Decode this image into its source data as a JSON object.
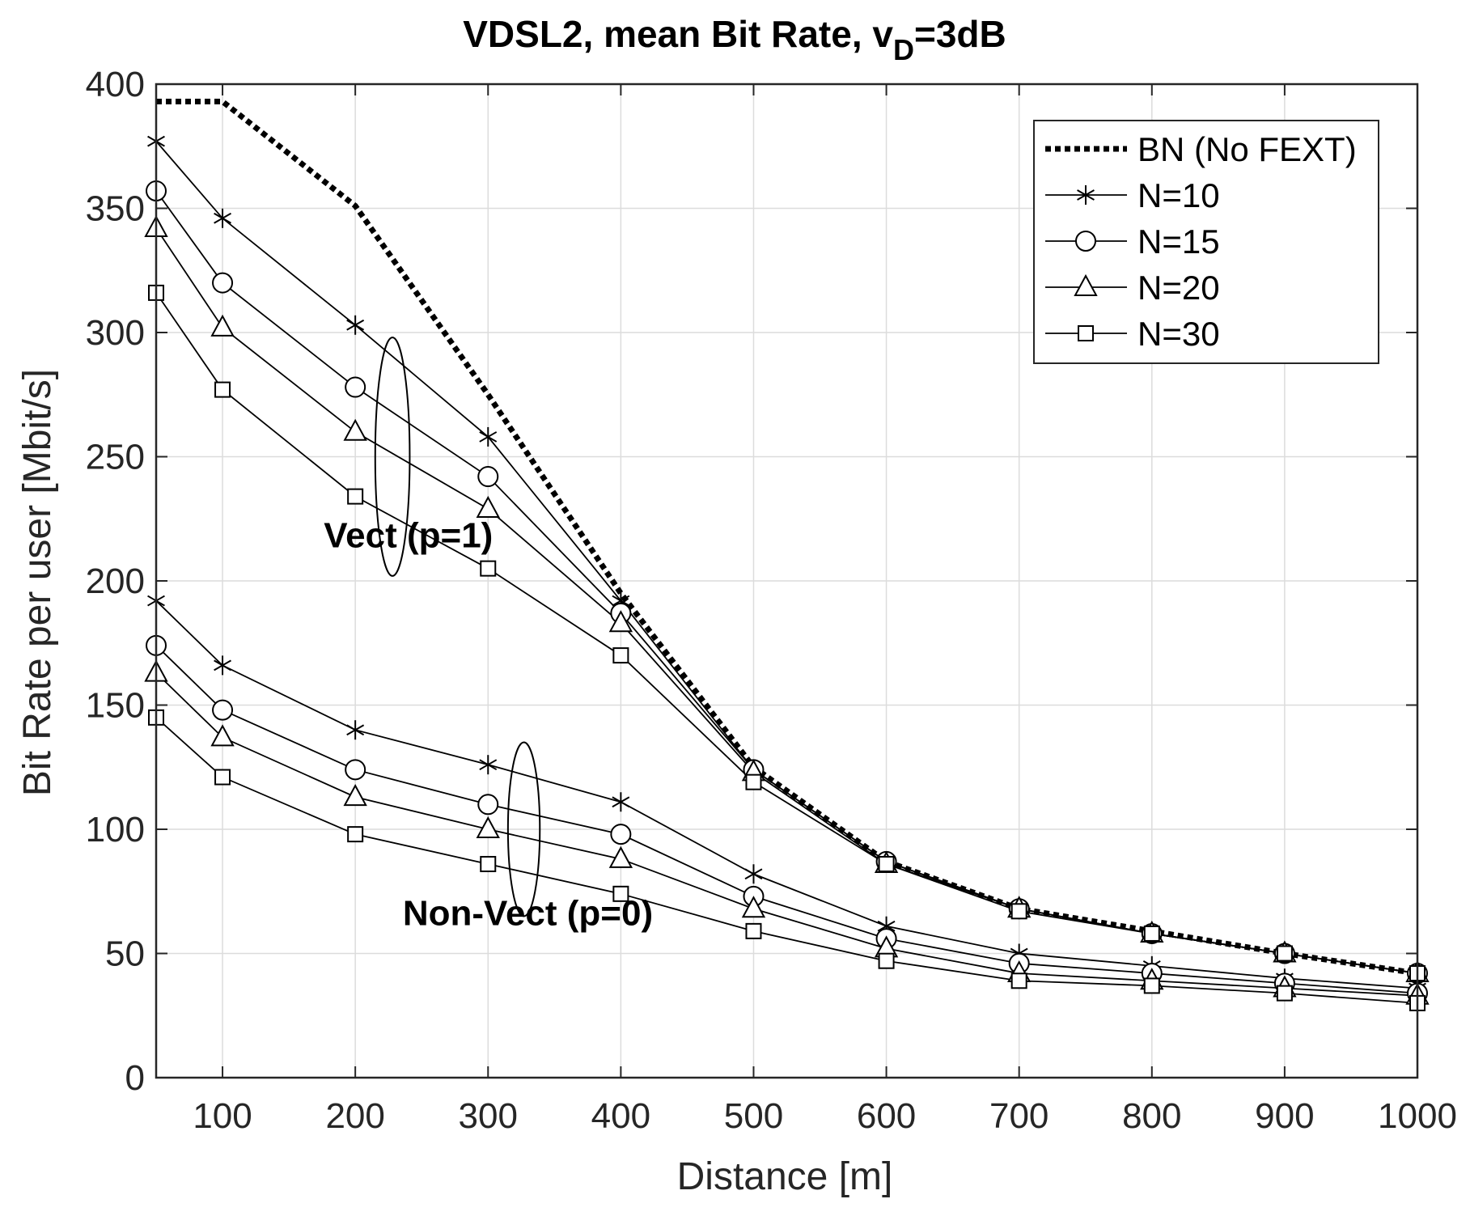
{
  "chart_data": {
    "type": "line",
    "title": "VDSL2, mean Bit Rate, v",
    "title_sub": "D",
    "title_suffix": "=3dB",
    "xlabel": "Distance [m]",
    "ylabel": "Bit Rate per user [Mbit/s]",
    "xlim": [
      50,
      1000
    ],
    "ylim": [
      0,
      400
    ],
    "xticks": [
      100,
      200,
      300,
      400,
      500,
      600,
      700,
      800,
      900,
      1000
    ],
    "yticks": [
      0,
      50,
      100,
      150,
      200,
      250,
      300,
      350,
      400
    ],
    "grid": true,
    "legend_position": "top-right",
    "x": [
      50,
      100,
      200,
      300,
      400,
      500,
      600,
      700,
      800,
      900,
      1000
    ],
    "reference": {
      "name": "BN (No FEXT)",
      "style": "dotted",
      "x": [
        50,
        100,
        200,
        300,
        400,
        500,
        600,
        700,
        800,
        900,
        1000
      ],
      "values": [
        393,
        393,
        351,
        275,
        195,
        125,
        87,
        68,
        59,
        50,
        42
      ]
    },
    "series": [
      {
        "name": "N=10",
        "marker": "star",
        "group": "Vect (p=1)",
        "values": [
          377,
          346,
          303,
          258,
          192,
          124,
          87,
          68,
          58,
          50,
          42
        ]
      },
      {
        "name": "N=15",
        "marker": "circle",
        "group": "Vect (p=1)",
        "values": [
          357,
          320,
          278,
          242,
          187,
          124,
          87,
          68,
          58,
          50,
          42
        ]
      },
      {
        "name": "N=20",
        "marker": "triangle",
        "group": "Vect (p=1)",
        "values": [
          342,
          302,
          260,
          229,
          183,
          123,
          86,
          68,
          58,
          50,
          42
        ]
      },
      {
        "name": "N=30",
        "marker": "square",
        "group": "Vect (p=1)",
        "values": [
          316,
          277,
          234,
          205,
          170,
          119,
          86,
          67,
          58,
          50,
          42
        ]
      },
      {
        "name": "N=10",
        "marker": "star",
        "group": "Non-Vect (p=0)",
        "values": [
          192,
          166,
          140,
          126,
          111,
          82,
          61,
          50,
          45,
          40,
          36
        ]
      },
      {
        "name": "N=15",
        "marker": "circle",
        "group": "Non-Vect (p=0)",
        "values": [
          174,
          148,
          124,
          110,
          98,
          73,
          56,
          46,
          42,
          38,
          34
        ]
      },
      {
        "name": "N=20",
        "marker": "triangle",
        "group": "Non-Vect (p=0)",
        "values": [
          163,
          137,
          113,
          100,
          88,
          68,
          52,
          42,
          39,
          36,
          33
        ]
      },
      {
        "name": "N=30",
        "marker": "square",
        "group": "Non-Vect (p=0)",
        "values": [
          145,
          121,
          98,
          86,
          74,
          59,
          47,
          39,
          37,
          34,
          30
        ]
      }
    ],
    "legend": [
      "BN (No FEXT)",
      "N=10",
      "N=15",
      "N=20",
      "N=30"
    ],
    "annotations": [
      {
        "text": "Vect (p=1)",
        "x": 240,
        "y": 218,
        "ellipse_center": [
          228,
          250
        ],
        "ellipse_radii": [
          13,
          48
        ]
      },
      {
        "text": "Non-Vect (p=0)",
        "x": 330,
        "y": 66,
        "ellipse_center": [
          327,
          100
        ],
        "ellipse_radii": [
          12,
          35
        ]
      }
    ]
  }
}
